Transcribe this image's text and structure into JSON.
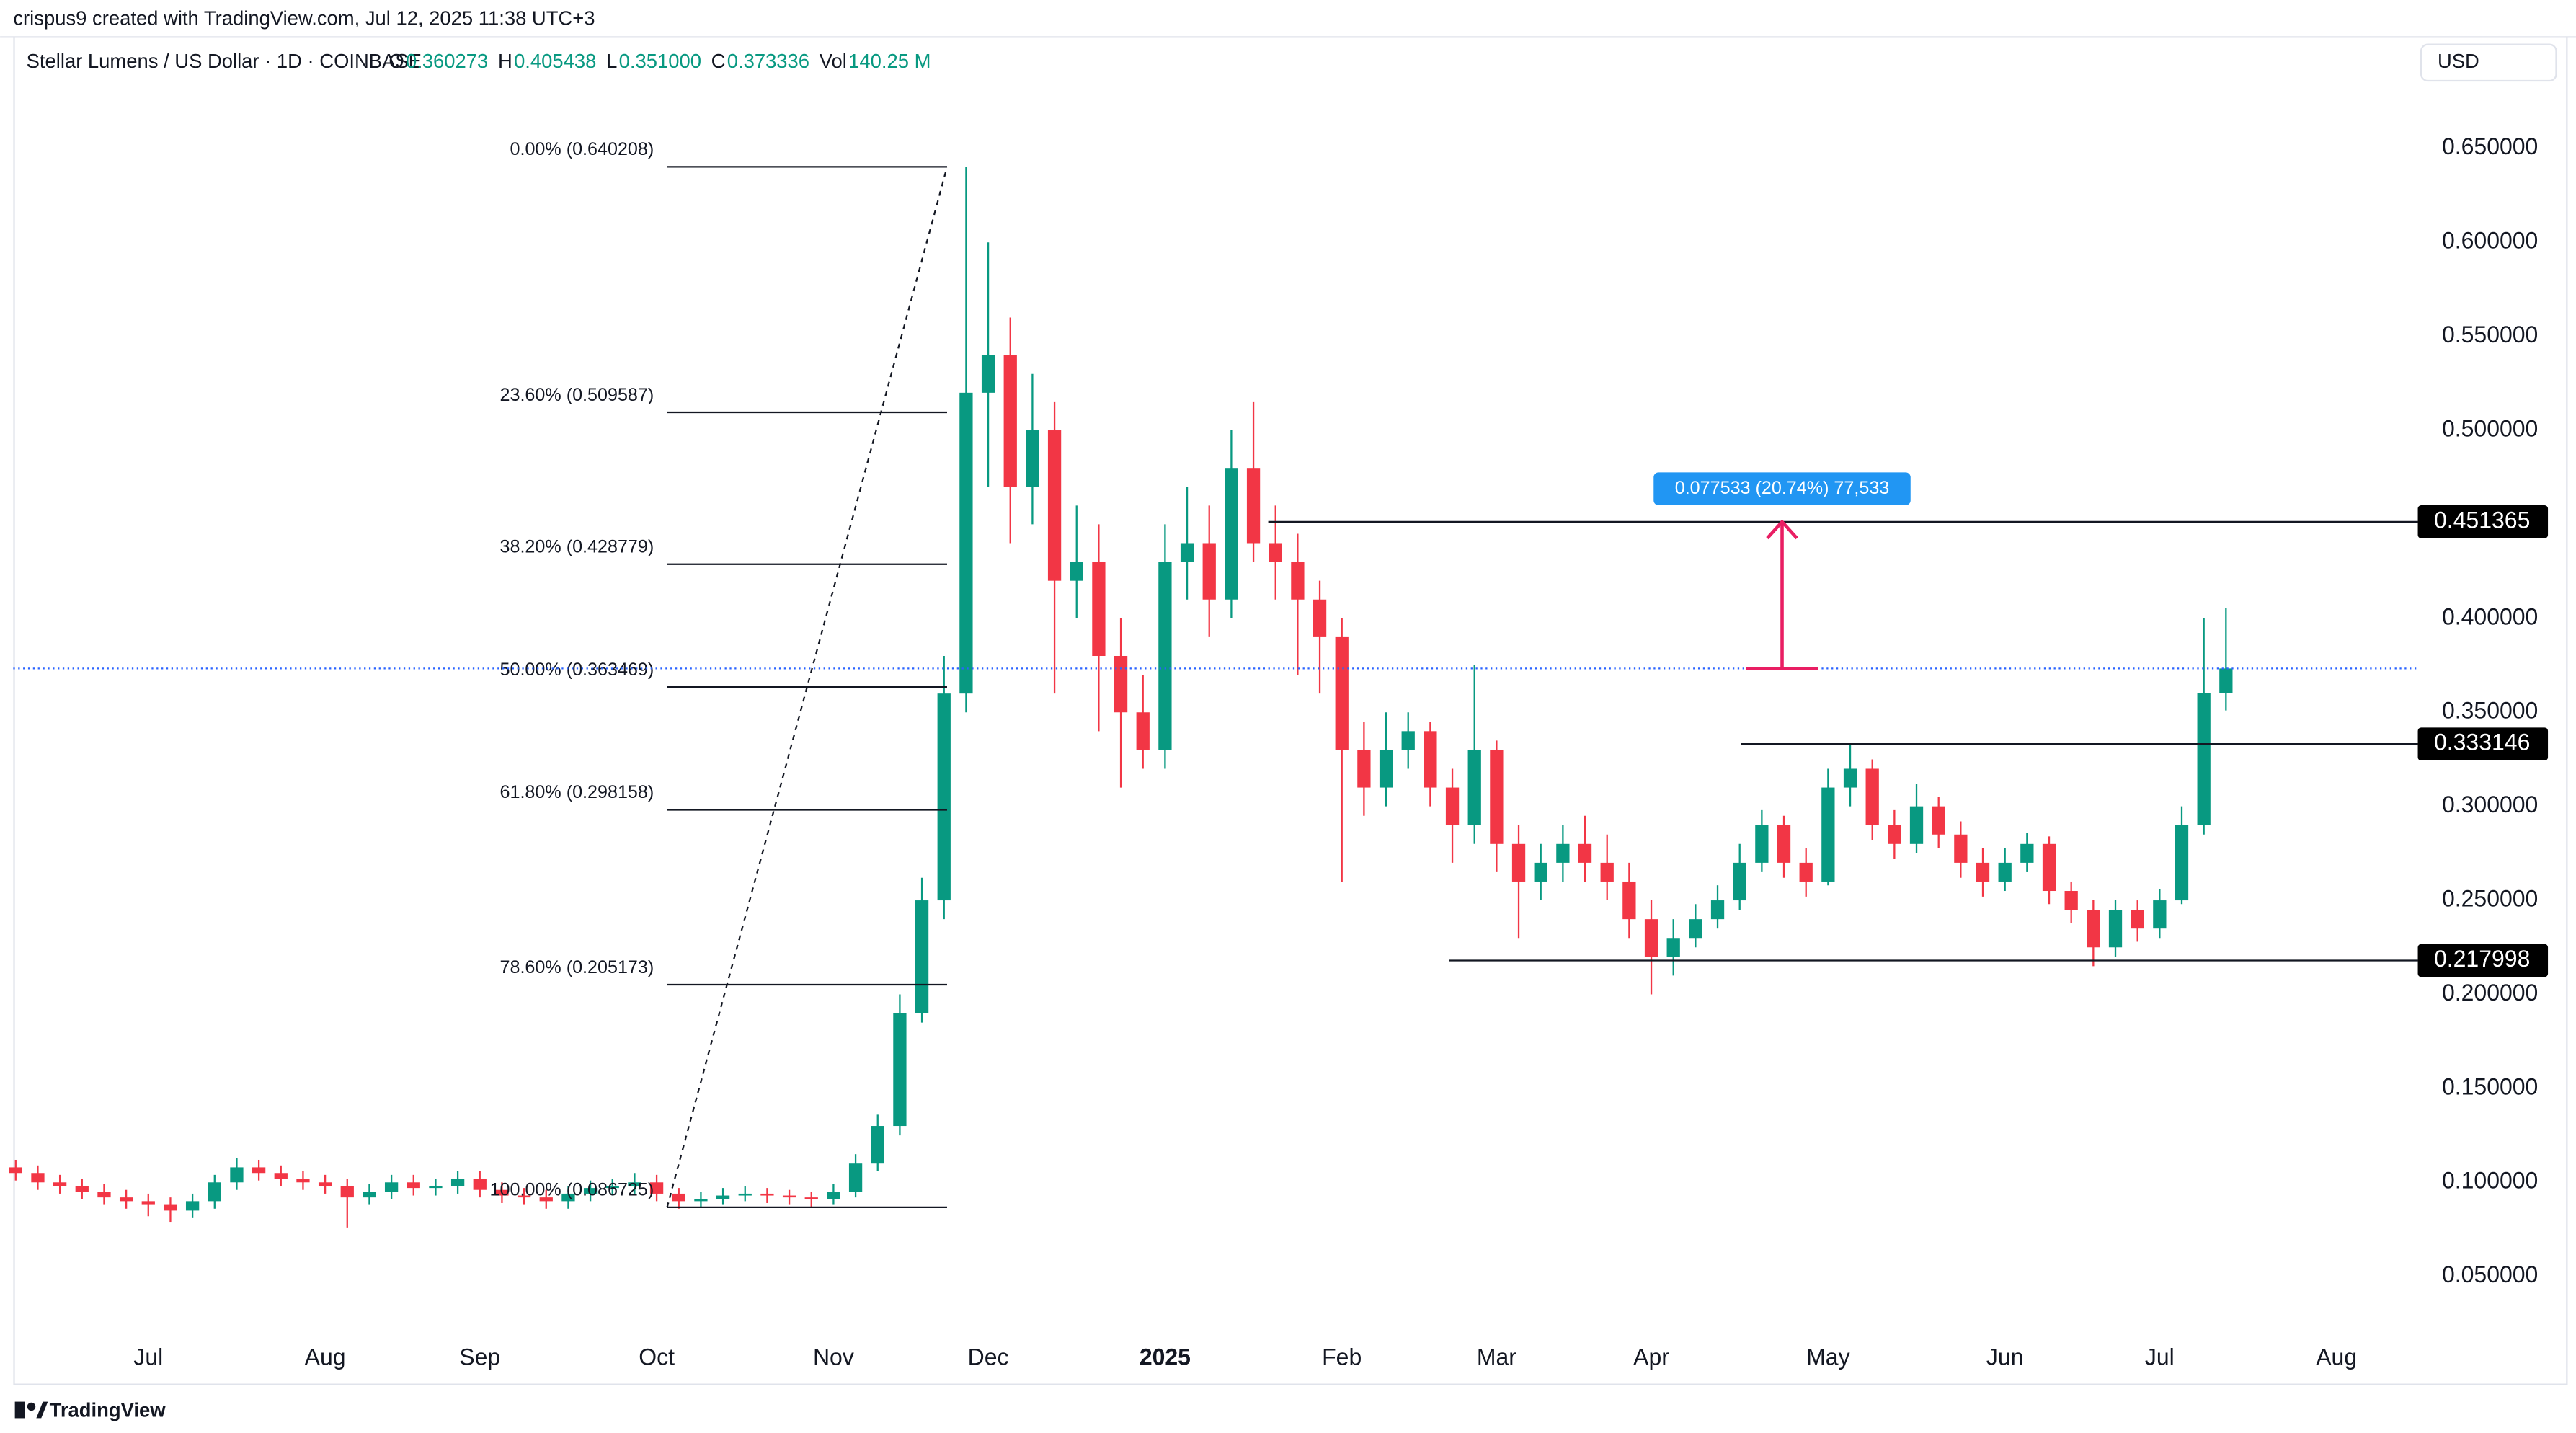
{
  "author_line": "crispus9 created with TradingView.com, Jul 12, 2025 11:38 UTC+3",
  "legend": [
    {
      "key": "O",
      "value": "0.360273"
    },
    {
      "key": "H",
      "value": "0.405438"
    },
    {
      "key": "L",
      "value": "0.351000"
    },
    {
      "key": "C",
      "value": "0.373336"
    },
    {
      "key": "Vol",
      "value": "140.25 M"
    }
  ],
  "currency": "USD",
  "brand": "TradingView",
  "chart_data": {
    "type": "candlestick",
    "title": "Stellar Lumens / US Dollar · 1D · COINBASE",
    "up_color": "#089981",
    "down_color": "#f23645",
    "categories": [
      null,
      null,
      null,
      null,
      null,
      null,
      "Jul",
      null,
      null,
      null,
      null,
      null,
      null,
      null,
      "Aug",
      null,
      null,
      null,
      null,
      null,
      null,
      "Sep",
      null,
      null,
      null,
      null,
      null,
      null,
      null,
      "Oct",
      null,
      null,
      null,
      null,
      null,
      null,
      null,
      "Nov",
      null,
      null,
      null,
      null,
      null,
      null,
      "Dec",
      null,
      null,
      null,
      null,
      null,
      null,
      null,
      "2025",
      null,
      null,
      null,
      null,
      null,
      null,
      null,
      "Feb",
      null,
      null,
      null,
      null,
      null,
      null,
      "Mar",
      null,
      null,
      null,
      null,
      null,
      null,
      "Apr",
      null,
      null,
      null,
      null,
      null,
      null,
      null,
      "May",
      null,
      null,
      null,
      null,
      null,
      null,
      null,
      "Jun",
      null,
      null,
      null,
      null,
      null,
      null,
      "Jul",
      null,
      null,
      null,
      null,
      null,
      null,
      null,
      "Aug"
    ],
    "open": [
      0.108,
      0.105,
      0.1,
      0.098,
      0.095,
      0.092,
      0.09,
      0.088,
      0.085,
      0.09,
      0.1,
      0.108,
      0.105,
      0.102,
      0.1,
      0.098,
      0.092,
      0.095,
      0.1,
      0.097,
      0.098,
      0.102,
      0.096,
      0.093,
      0.092,
      0.09,
      0.094,
      0.097,
      0.098,
      0.1,
      0.094,
      0.09,
      0.091,
      0.093,
      0.094,
      0.093,
      0.092,
      0.091,
      0.095,
      0.11,
      0.13,
      0.19,
      0.25,
      0.36,
      0.52,
      0.54,
      0.47,
      0.5,
      0.42,
      0.43,
      0.38,
      0.35,
      0.33,
      0.43,
      0.44,
      0.41,
      0.48,
      0.44,
      0.43,
      0.41,
      0.39,
      0.33,
      0.31,
      0.33,
      0.34,
      0.31,
      0.29,
      0.33,
      0.28,
      0.26,
      0.27,
      0.28,
      0.27,
      0.26,
      0.24,
      0.22,
      0.23,
      0.24,
      0.25,
      0.27,
      0.29,
      0.27,
      0.26,
      0.31,
      0.32,
      0.29,
      0.28,
      0.3,
      0.285,
      0.27,
      0.26,
      0.27,
      0.28,
      0.255,
      0.245,
      0.225,
      0.245,
      0.235,
      0.25,
      0.29,
      0.360273,
      null,
      null,
      null,
      null,
      null
    ],
    "high": [
      0.112,
      0.109,
      0.104,
      0.102,
      0.099,
      0.096,
      0.094,
      0.092,
      0.094,
      0.104,
      0.113,
      0.112,
      0.109,
      0.106,
      0.104,
      0.102,
      0.099,
      0.104,
      0.104,
      0.102,
      0.106,
      0.106,
      0.1,
      0.097,
      0.096,
      0.098,
      0.101,
      0.102,
      0.105,
      0.104,
      0.097,
      0.095,
      0.097,
      0.098,
      0.097,
      0.096,
      0.095,
      0.099,
      0.115,
      0.136,
      0.2,
      0.262,
      0.38,
      0.640208,
      0.6,
      0.56,
      0.53,
      0.515,
      0.46,
      0.45,
      0.4,
      0.37,
      0.45,
      0.47,
      0.46,
      0.5,
      0.515,
      0.46,
      0.445,
      0.42,
      0.4,
      0.345,
      0.35,
      0.35,
      0.345,
      0.32,
      0.375,
      0.335,
      0.29,
      0.28,
      0.29,
      0.295,
      0.285,
      0.27,
      0.25,
      0.24,
      0.248,
      0.258,
      0.28,
      0.298,
      0.295,
      0.278,
      0.32,
      0.333,
      0.325,
      0.298,
      0.312,
      0.305,
      0.292,
      0.278,
      0.278,
      0.286,
      0.284,
      0.26,
      0.25,
      0.25,
      0.25,
      0.256,
      0.3,
      0.4,
      0.405438,
      null,
      null,
      null,
      null,
      null
    ],
    "low": [
      0.101,
      0.096,
      0.094,
      0.091,
      0.088,
      0.086,
      0.082,
      0.079,
      0.081,
      0.086,
      0.096,
      0.101,
      0.098,
      0.096,
      0.094,
      0.076,
      0.088,
      0.091,
      0.093,
      0.093,
      0.094,
      0.092,
      0.089,
      0.088,
      0.086,
      0.086,
      0.09,
      0.093,
      0.094,
      0.09,
      0.086,
      0.087,
      0.088,
      0.09,
      0.089,
      0.088,
      0.086725,
      0.088,
      0.092,
      0.106,
      0.125,
      0.185,
      0.24,
      0.35,
      0.47,
      0.44,
      0.45,
      0.36,
      0.4,
      0.34,
      0.31,
      0.32,
      0.32,
      0.41,
      0.39,
      0.4,
      0.43,
      0.41,
      0.37,
      0.36,
      0.26,
      0.295,
      0.3,
      0.32,
      0.3,
      0.27,
      0.28,
      0.265,
      0.23,
      0.25,
      0.26,
      0.26,
      0.25,
      0.23,
      0.2,
      0.21,
      0.225,
      0.235,
      0.245,
      0.265,
      0.262,
      0.252,
      0.258,
      0.3,
      0.282,
      0.272,
      0.275,
      0.278,
      0.262,
      0.252,
      0.255,
      0.265,
      0.248,
      0.238,
      0.215,
      0.22,
      0.228,
      0.23,
      0.248,
      0.285,
      0.351,
      null,
      null,
      null,
      null,
      null
    ],
    "close": [
      0.105,
      0.1,
      0.098,
      0.095,
      0.092,
      0.09,
      0.088,
      0.085,
      0.09,
      0.1,
      0.108,
      0.105,
      0.102,
      0.1,
      0.098,
      0.092,
      0.095,
      0.1,
      0.097,
      0.098,
      0.102,
      0.096,
      0.093,
      0.092,
      0.09,
      0.094,
      0.097,
      0.098,
      0.1,
      0.094,
      0.09,
      0.091,
      0.093,
      0.094,
      0.093,
      0.092,
      0.091,
      0.095,
      0.11,
      0.13,
      0.19,
      0.25,
      0.36,
      0.52,
      0.54,
      0.47,
      0.5,
      0.42,
      0.43,
      0.38,
      0.35,
      0.33,
      0.43,
      0.44,
      0.41,
      0.48,
      0.44,
      0.43,
      0.41,
      0.39,
      0.33,
      0.31,
      0.33,
      0.34,
      0.31,
      0.29,
      0.33,
      0.28,
      0.26,
      0.27,
      0.28,
      0.27,
      0.26,
      0.24,
      0.22,
      0.23,
      0.24,
      0.25,
      0.27,
      0.29,
      0.27,
      0.26,
      0.31,
      0.32,
      0.29,
      0.28,
      0.3,
      0.285,
      0.27,
      0.26,
      0.27,
      0.28,
      0.255,
      0.245,
      0.225,
      0.245,
      0.235,
      0.25,
      0.29,
      0.360273,
      0.373336,
      null,
      null,
      null,
      null,
      null
    ],
    "ylim": [
      0.021,
      0.707
    ],
    "yticks": [
      {
        "value": 0.05,
        "label": "0.050000"
      },
      {
        "value": 0.1,
        "label": "0.100000"
      },
      {
        "value": 0.15,
        "label": "0.150000"
      },
      {
        "value": 0.2,
        "label": "0.200000"
      },
      {
        "value": 0.25,
        "label": "0.250000"
      },
      {
        "value": 0.3,
        "label": "0.300000"
      },
      {
        "value": 0.35,
        "label": "0.350000"
      },
      {
        "value": 0.4,
        "label": "0.400000"
      },
      {
        "value": 0.45,
        "label": "0.450000"
      },
      {
        "value": 0.5,
        "label": "0.500000"
      },
      {
        "value": 0.55,
        "label": "0.550000"
      },
      {
        "value": 0.6,
        "label": "0.600000"
      },
      {
        "value": 0.65,
        "label": "0.650000"
      }
    ],
    "price_lines": [
      0.451365,
      0.333146,
      0.217998
    ],
    "fib_levels": [
      {
        "label": "0.00% (0.640208)",
        "value": 0.640208
      },
      {
        "label": "23.60% (0.509587)",
        "value": 0.509587
      },
      {
        "label": "38.20% (0.428779)",
        "value": 0.428779
      },
      {
        "label": "50.00% (0.363469)",
        "value": 0.363469
      },
      {
        "label": "61.80% (0.298158)",
        "value": 0.298158
      },
      {
        "label": "78.60% (0.205173)",
        "value": 0.205173
      },
      {
        "label": "100.00% (0.086725)",
        "value": 0.086725
      }
    ],
    "measure_label": "0.077533 (20.74%) 77,533"
  }
}
